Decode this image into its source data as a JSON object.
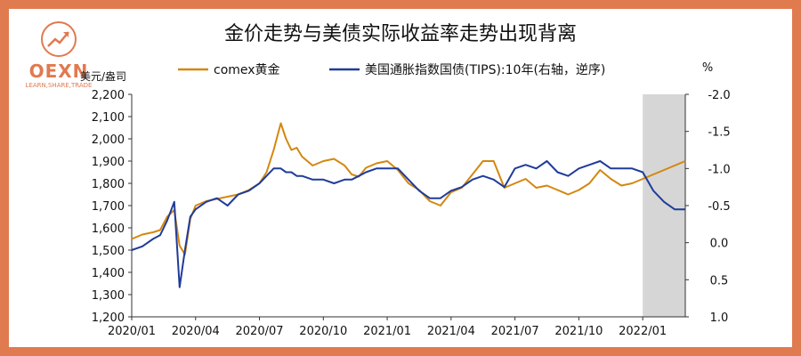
{
  "brand": {
    "name": "OEXN",
    "tagline": "LEARN,SHARE,TRADE",
    "color": "#E07A4F"
  },
  "title": "金价走势与美债实际收益率走势出现背离",
  "chart_data": {
    "type": "line",
    "title": "金价走势与美债实际收益率走势出现背离",
    "left_axis": {
      "unit_label": "美元/盎司",
      "range": [
        1200,
        2200
      ],
      "ticks": [
        "1,200",
        "1,300",
        "1,400",
        "1,500",
        "1,600",
        "1,700",
        "1,800",
        "1,900",
        "2,000",
        "2,100",
        "2,200"
      ]
    },
    "right_axis": {
      "unit_label": "%",
      "range": [
        1.0,
        -2.0
      ],
      "inverted": true,
      "ticks": [
        "1.0",
        "0.5",
        "0.0",
        "-0.5",
        "-1.0",
        "-1.5",
        "-2.0"
      ]
    },
    "x_axis": {
      "range": [
        "2020/01",
        "2022/03"
      ],
      "ticks": [
        "2020/01",
        "2020/04",
        "2020/07",
        "2020/10",
        "2021/01",
        "2021/04",
        "2021/07",
        "2021/10",
        "2022/01"
      ]
    },
    "legend": {
      "placement": "top",
      "entries": [
        "comex黄金",
        "美国通胀指数国债(TIPS):10年(右轴，逆序)"
      ]
    },
    "shaded_region": [
      "2022/01",
      "2022/03"
    ],
    "series": [
      {
        "name": "comex黄金",
        "axis": "left",
        "color": "#D4870E",
        "x": [
          "2020/01",
          "2020/01",
          "2020/02",
          "2020/02",
          "2020/02",
          "2020/03",
          "2020/03",
          "2020/03",
          "2020/03",
          "2020/04",
          "2020/04",
          "2020/05",
          "2020/05",
          "2020/06",
          "2020/06",
          "2020/07",
          "2020/07",
          "2020/07",
          "2020/08",
          "2020/08",
          "2020/08",
          "2020/08",
          "2020/09",
          "2020/09",
          "2020/10",
          "2020/10",
          "2020/11",
          "2020/11",
          "2020/11",
          "2020/12",
          "2020/12",
          "2021/01",
          "2021/01",
          "2021/02",
          "2021/02",
          "2021/03",
          "2021/03",
          "2021/04",
          "2021/04",
          "2021/05",
          "2021/05",
          "2021/06",
          "2021/06",
          "2021/07",
          "2021/07",
          "2021/08",
          "2021/08",
          "2021/09",
          "2021/09",
          "2021/10",
          "2021/10",
          "2021/11",
          "2021/11",
          "2021/12",
          "2021/12",
          "2022/01",
          "2022/01",
          "2022/02",
          "2022/02",
          "2022/03"
        ],
        "y": [
          1550,
          1570,
          1580,
          1590,
          1650,
          1680,
          1520,
          1480,
          1640,
          1700,
          1720,
          1730,
          1740,
          1750,
          1770,
          1800,
          1850,
          1950,
          2070,
          2000,
          1950,
          1960,
          1920,
          1880,
          1900,
          1910,
          1880,
          1840,
          1830,
          1870,
          1890,
          1900,
          1860,
          1800,
          1770,
          1720,
          1700,
          1760,
          1780,
          1840,
          1900,
          1900,
          1780,
          1800,
          1820,
          1780,
          1790,
          1770,
          1750,
          1770,
          1800,
          1860,
          1820,
          1790,
          1800,
          1820,
          1840,
          1860,
          1880,
          1900
        ]
      },
      {
        "name": "美国通胀指数国债(TIPS):10年(右轴，逆序)",
        "axis": "right",
        "color": "#1F3C9A",
        "x": [
          "2020/01",
          "2020/01",
          "2020/02",
          "2020/02",
          "2020/02",
          "2020/03",
          "2020/03",
          "2020/03",
          "2020/03",
          "2020/04",
          "2020/04",
          "2020/05",
          "2020/05",
          "2020/06",
          "2020/06",
          "2020/07",
          "2020/07",
          "2020/07",
          "2020/08",
          "2020/08",
          "2020/08",
          "2020/08",
          "2020/09",
          "2020/09",
          "2020/10",
          "2020/10",
          "2020/11",
          "2020/11",
          "2020/11",
          "2020/12",
          "2020/12",
          "2021/01",
          "2021/01",
          "2021/02",
          "2021/02",
          "2021/03",
          "2021/03",
          "2021/04",
          "2021/04",
          "2021/05",
          "2021/05",
          "2021/06",
          "2021/06",
          "2021/07",
          "2021/07",
          "2021/08",
          "2021/08",
          "2021/09",
          "2021/09",
          "2021/10",
          "2021/10",
          "2021/11",
          "2021/11",
          "2021/12",
          "2021/12",
          "2022/01",
          "2022/01",
          "2022/02",
          "2022/02",
          "2022/03"
        ],
        "y": [
          0.1,
          0.05,
          -0.05,
          -0.1,
          -0.3,
          -0.55,
          0.6,
          0.1,
          -0.35,
          -0.45,
          -0.55,
          -0.6,
          -0.5,
          -0.65,
          -0.7,
          -0.8,
          -0.9,
          -1.0,
          -1.0,
          -0.95,
          -0.95,
          -0.9,
          -0.9,
          -0.85,
          -0.85,
          -0.8,
          -0.85,
          -0.85,
          -0.9,
          -0.95,
          -1.0,
          -1.0,
          -1.0,
          -0.85,
          -0.7,
          -0.6,
          -0.6,
          -0.7,
          -0.75,
          -0.85,
          -0.9,
          -0.85,
          -0.75,
          -1.0,
          -1.05,
          -1.0,
          -1.1,
          -0.95,
          -0.9,
          -1.0,
          -1.05,
          -1.1,
          -1.0,
          -1.0,
          -1.0,
          -0.95,
          -0.7,
          -0.55,
          -0.45,
          -0.45
        ]
      }
    ]
  }
}
